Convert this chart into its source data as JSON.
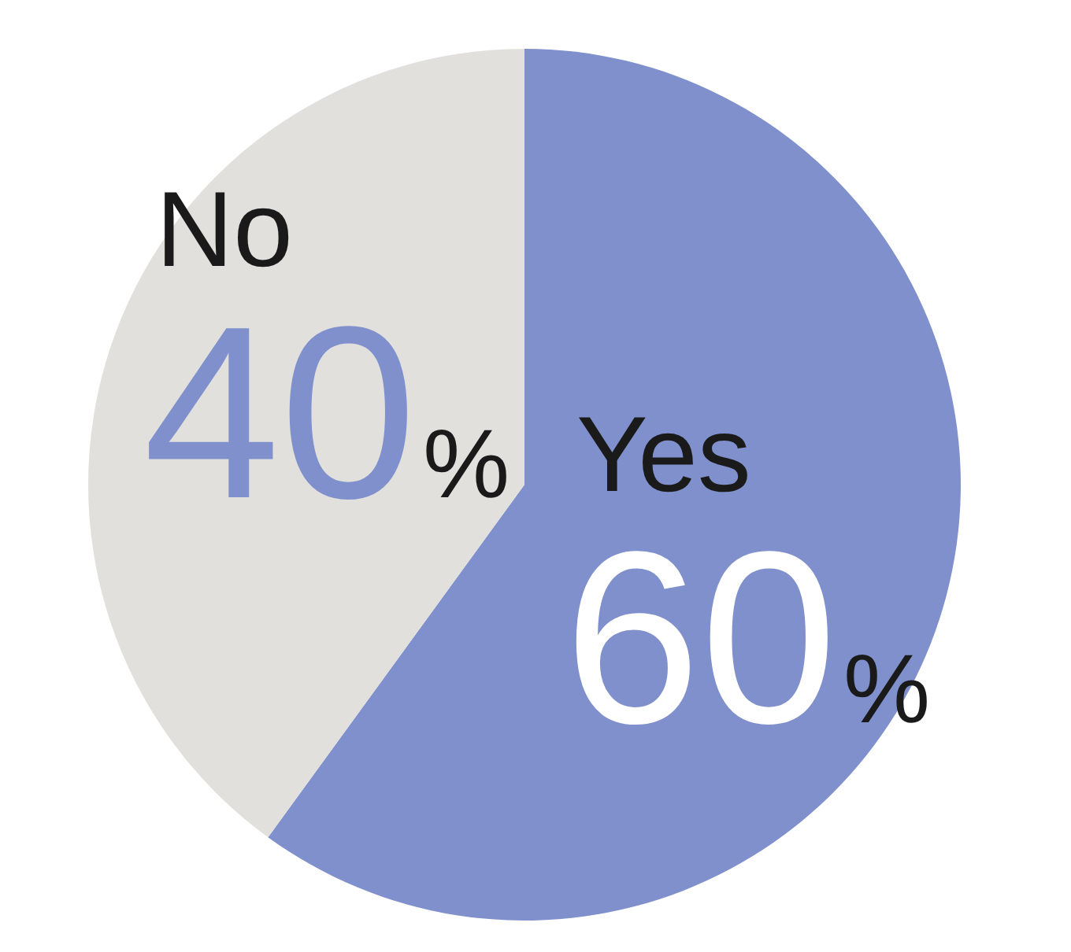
{
  "chart_data": {
    "type": "pie",
    "categories": [
      "Yes",
      "No"
    ],
    "values": [
      60,
      40
    ],
    "colors": [
      "#7f90cc",
      "#e1e0dd"
    ],
    "value_labels": [
      "60%",
      "40%"
    ]
  }
}
